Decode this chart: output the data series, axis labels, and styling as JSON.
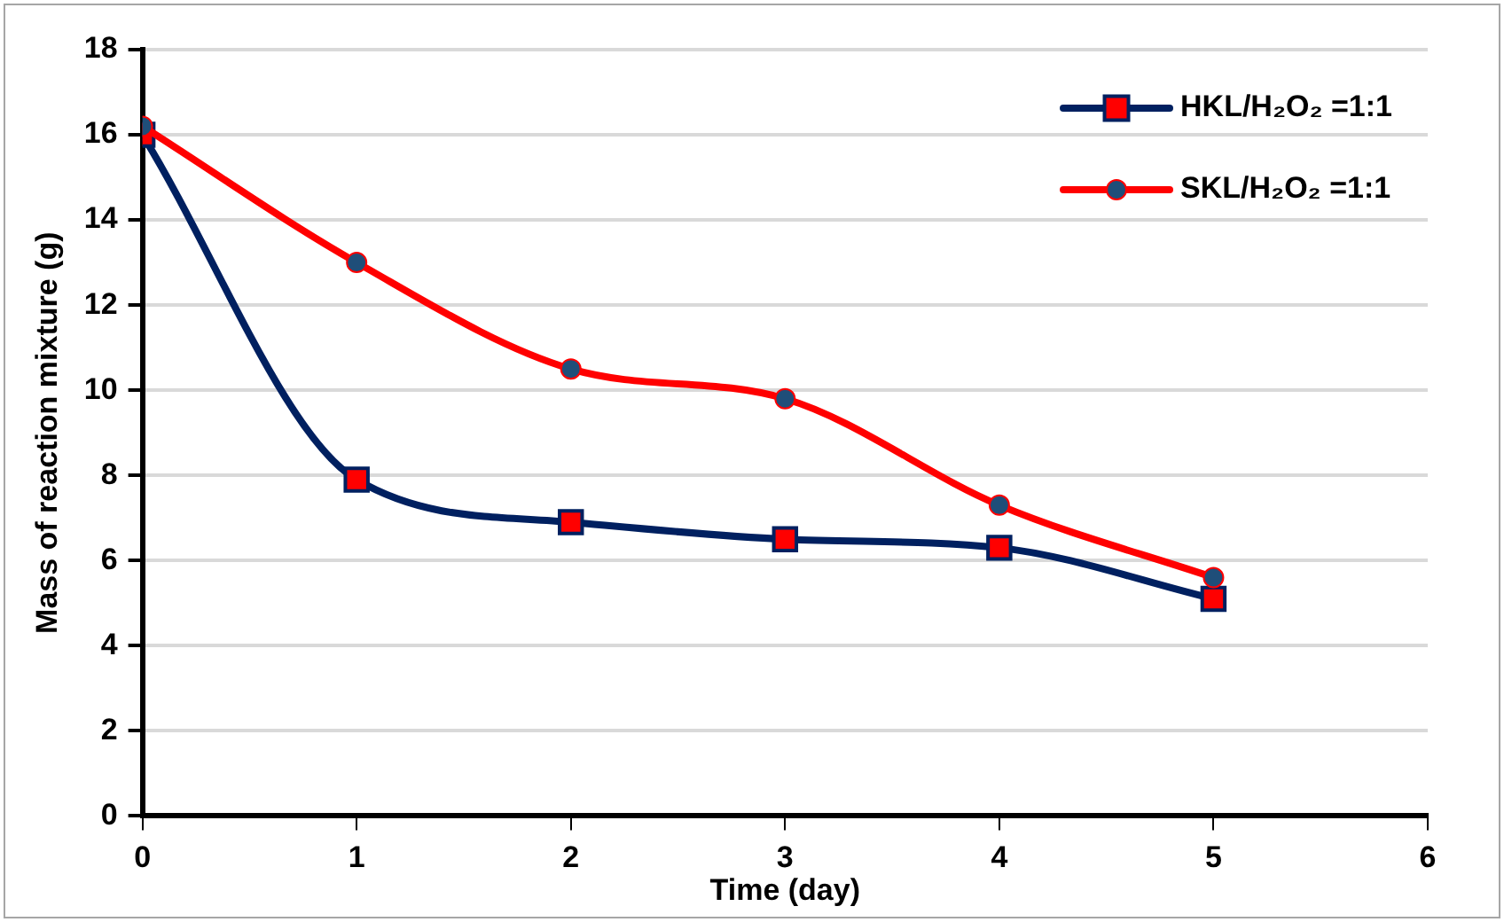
{
  "chart_data": {
    "type": "line",
    "xlabel": "Time (day)",
    "ylabel": "Mass of reaction mixture (g)",
    "x": [
      0,
      1,
      2,
      3,
      4,
      5
    ],
    "xlim": [
      0,
      6
    ],
    "xticks": [
      0,
      1,
      2,
      3,
      4,
      5,
      6
    ],
    "ylim": [
      0,
      18
    ],
    "yticks": [
      0,
      2,
      4,
      6,
      8,
      10,
      12,
      14,
      16,
      18
    ],
    "grid": "y",
    "legend": "top right",
    "line_style": "solid",
    "series": [
      {
        "name": "HKL/H₂O₂ =1:1",
        "color": "#002060",
        "marker": "square",
        "colors": [
          "#ff0000",
          "#ff0000",
          "#ff0000",
          "#ff0000",
          "#ff0000",
          "#ff0000"
        ],
        "values": [
          16,
          7.9,
          6.9,
          6.5,
          6.3,
          5.1
        ]
      },
      {
        "name": "SKL/H₂O₂ =1:1",
        "color": "#ff0000",
        "marker": "circle",
        "colors": [
          "#1f4e79",
          "#1f4e79",
          "#1f4e79",
          "#1f4e79",
          "#1f4e79",
          "#1f4e79"
        ],
        "values": [
          16.2,
          13,
          10.5,
          9.8,
          7.3,
          5.6
        ]
      }
    ]
  }
}
